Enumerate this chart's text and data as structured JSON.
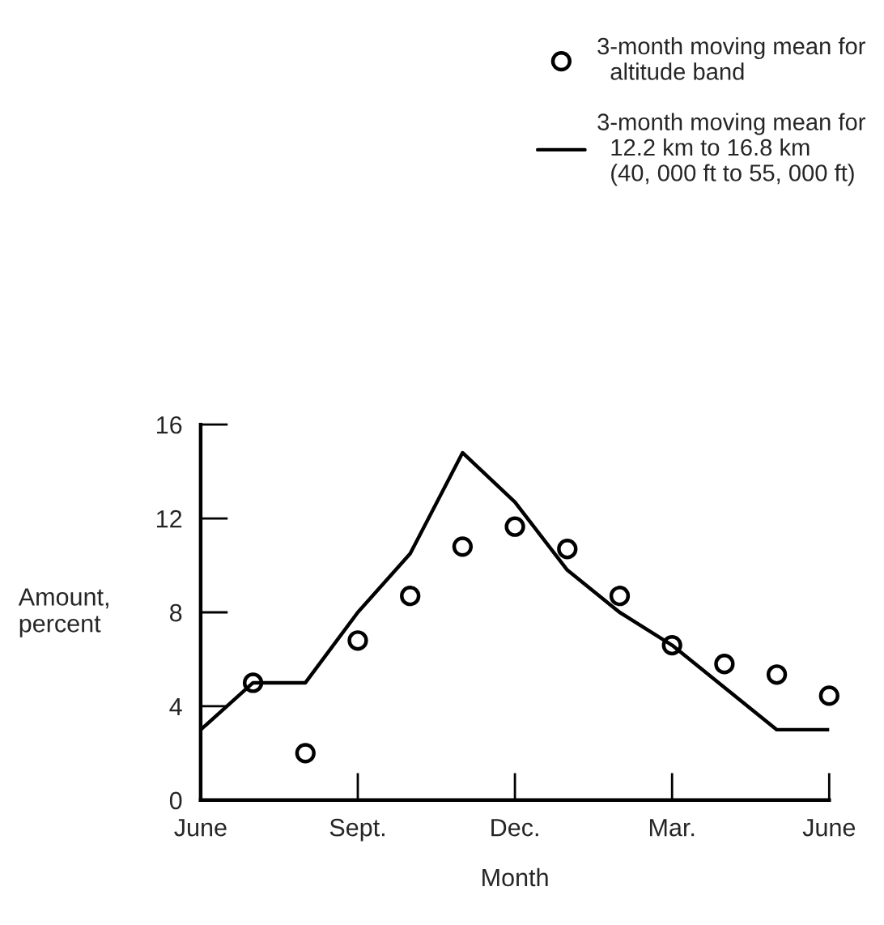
{
  "chart_data": {
    "type": "line",
    "xlabel": "Month",
    "ylabel": "Amount,\npercent",
    "categories": [
      "June",
      null,
      null,
      "Sept.",
      null,
      null,
      "Dec.",
      null,
      null,
      "Mar.",
      null,
      null,
      "June"
    ],
    "series": [
      {
        "name": "3-month moving mean for\n  altitude band",
        "type": "scatter",
        "color": "#000000",
        "marker": "circle",
        "values": [
          null,
          5.0,
          2.0,
          6.8,
          8.7,
          10.8,
          11.65,
          10.7,
          8.7,
          6.6,
          5.8,
          5.35,
          4.45
        ]
      },
      {
        "name": "3-month moving mean for\n  12.2 km to 16.8 km\n  (40, 000 ft to 55, 000 ft)",
        "color": "#000000",
        "line_style": "solid",
        "values": [
          3.0,
          5.0,
          5.0,
          8.0,
          10.5,
          14.8,
          12.7,
          9.8,
          8.0,
          6.6,
          4.8,
          3.0,
          3.0
        ]
      }
    ],
    "ylim": [
      0,
      16
    ],
    "yticks": [
      0,
      4,
      8,
      12,
      16
    ],
    "legend": "top right"
  }
}
